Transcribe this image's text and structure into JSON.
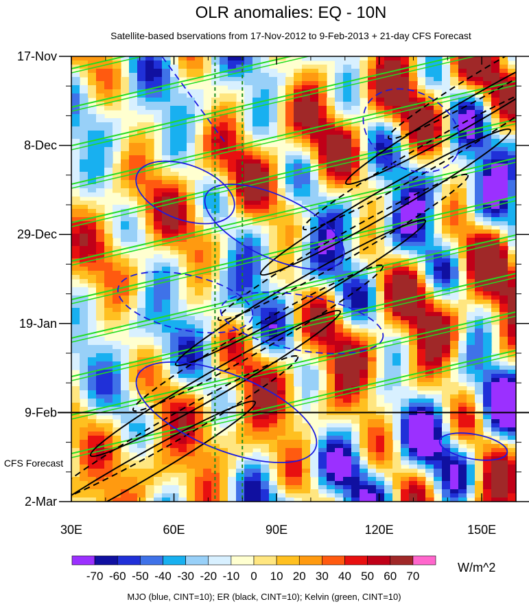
{
  "chart_data": {
    "type": "heatmap",
    "title": "OLR anomalies: EQ - 10N",
    "subtitle": "Satellite-based bservations from 17-Nov-2012 to 9-Feb-2013 + 21-day CFS Forecast",
    "x_tick_labels": [
      "30E",
      "60E",
      "90E",
      "120E",
      "150E"
    ],
    "x_ticks": [
      30,
      60,
      90,
      120,
      150
    ],
    "xlim": [
      30,
      160
    ],
    "y_tick_labels": [
      "17-Nov",
      "8-Dec",
      "29-Dec",
      "19-Jan",
      "9-Feb",
      "2-Mar"
    ],
    "y_ticks_day": [
      0,
      21,
      42,
      63,
      84,
      105
    ],
    "ylim_day": [
      0,
      105
    ],
    "observation_end_label": "9-Feb",
    "forecast_label": "CFS Forecast",
    "colorbar": {
      "levels": [
        "-70",
        "-60",
        "-50",
        "-40",
        "-30",
        "-20",
        "-10",
        "0",
        "10",
        "20",
        "30",
        "40",
        "50",
        "60",
        "70"
      ],
      "colors": [
        "#9b30ff",
        "#1010a0",
        "#2030d8",
        "#3f72e8",
        "#18b0f0",
        "#98d0f8",
        "#d8f0ff",
        "#ffffd0",
        "#ffe680",
        "#ffc020",
        "#ff9a10",
        "#ff5a10",
        "#e81010",
        "#c00018",
        "#a02828",
        "#ff66cc"
      ],
      "unit": "W/m^2"
    },
    "guide_lines_lon": [
      72,
      80
    ],
    "contour_legend": "MJO (blue, CINT=10); ER (black, CINT=10); Kelvin (green, CINT=10)",
    "line_colors": {
      "mjo": "#1a1ae0",
      "er": "#000000",
      "kelvin": "#22dd22",
      "guide": "#1c8c1c"
    }
  }
}
